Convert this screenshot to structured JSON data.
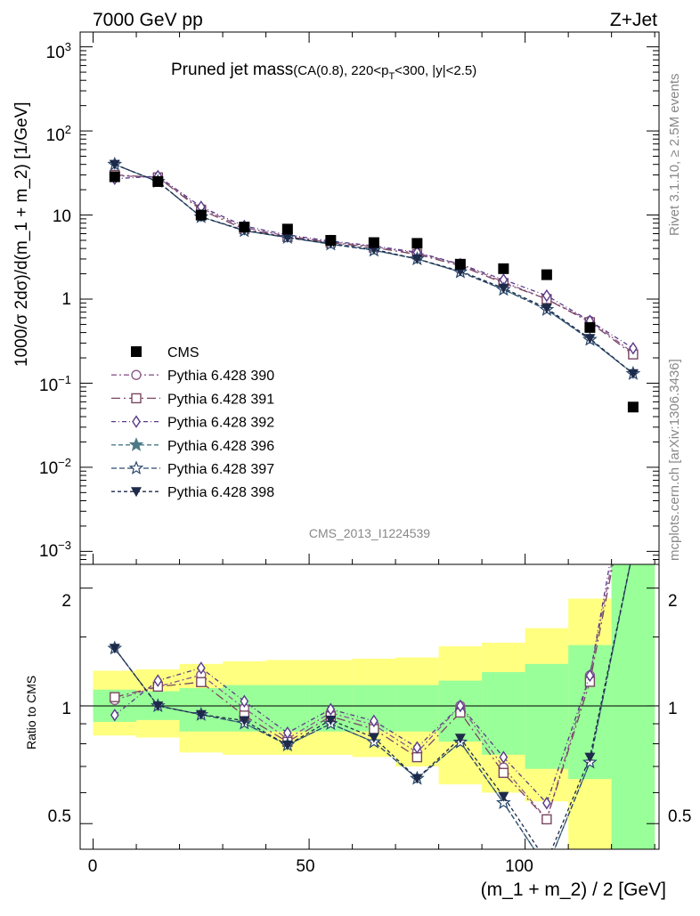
{
  "header": {
    "left": "7000 GeV pp",
    "right": "Z+Jet",
    "title_main": "Pruned jet mass",
    "title_sub": "(CA(0.8), 220<p",
    "title_sub_idx": "T",
    "title_sub_rest": "<300, |y|<2.5)"
  },
  "side_labels": {
    "rivet": "Rivet 3.1.10, ≥ 2.5M events",
    "mcplots": "mcplots.cern.ch [arXiv:1306.3436]"
  },
  "analysis_id": "CMS_2013_I1224539",
  "ylabel_top": "1000/σ 2dσ)/d(m_1 + m_2) [1/GeV]",
  "ylabel_bottom": "Ratio to CMS",
  "xlabel": "(m_1 + m_2) / 2 [GeV]",
  "ticks": {
    "x": [
      "0",
      "50",
      "100"
    ],
    "y_top_plain": [
      "1",
      "10"
    ],
    "y_top_pow": [
      {
        "base": "10",
        "exp": "3"
      },
      {
        "base": "10",
        "exp": "2"
      },
      {
        "base": "10",
        "exp": "−1"
      },
      {
        "base": "10",
        "exp": "−2"
      },
      {
        "base": "10",
        "exp": "−3"
      }
    ],
    "y_ratio": [
      "0.5",
      "1",
      "2"
    ]
  },
  "chart_data": {
    "type": "line",
    "x_range": [
      -3,
      131
    ],
    "y_range_top": [
      0.0007,
      1500
    ],
    "y_log": true,
    "y_range_ratio": [
      0.43,
      2.3
    ],
    "ratio_log": true,
    "bins": [
      [
        0,
        10
      ],
      [
        10,
        20
      ],
      [
        20,
        30
      ],
      [
        30,
        40
      ],
      [
        40,
        50
      ],
      [
        50,
        60
      ],
      [
        60,
        70
      ],
      [
        70,
        80
      ],
      [
        80,
        90
      ],
      [
        90,
        100
      ],
      [
        100,
        110
      ],
      [
        110,
        120
      ],
      [
        120,
        130
      ]
    ],
    "x": [
      5,
      15,
      25,
      35,
      45,
      55,
      65,
      75,
      85,
      95,
      105,
      115,
      125
    ],
    "cms": [
      28.5,
      25,
      10,
      7.2,
      6.8,
      5.0,
      4.7,
      4.6,
      2.6,
      2.3,
      1.95,
      0.46,
      0.052
    ],
    "band_inner": [
      [
        0.91,
        1.1
      ],
      [
        0.92,
        1.09
      ],
      [
        0.86,
        1.11
      ],
      [
        0.86,
        1.13
      ],
      [
        0.86,
        1.13
      ],
      [
        0.86,
        1.13
      ],
      [
        0.86,
        1.13
      ],
      [
        0.86,
        1.13
      ],
      [
        0.81,
        1.16
      ],
      [
        0.75,
        1.22
      ],
      [
        0.69,
        1.28
      ],
      [
        0.65,
        1.43
      ],
      [
        0.33,
        2.3
      ]
    ],
    "band_outer": [
      [
        0.84,
        1.23
      ],
      [
        0.83,
        1.24
      ],
      [
        0.76,
        1.28
      ],
      [
        0.75,
        1.3
      ],
      [
        0.75,
        1.31
      ],
      [
        0.75,
        1.31
      ],
      [
        0.74,
        1.32
      ],
      [
        0.7,
        1.33
      ],
      [
        0.63,
        1.42
      ],
      [
        0.6,
        1.45
      ],
      [
        0.57,
        1.58
      ],
      [
        0.33,
        1.88
      ],
      [
        0.33,
        2.3
      ]
    ],
    "legend_placement": "center-left",
    "series": [
      {
        "name": "CMS",
        "color": "#000000",
        "marker": "square"
      },
      {
        "name": "Pythia 6.428 390",
        "color": "#8b5a8c",
        "marker": "circle",
        "dash": "6,3,2,3",
        "values": [
          29.5,
          28,
          12,
          7.1,
          5.6,
          4.8,
          4.2,
          3.5,
          2.6,
          1.6,
          1.0,
          0.55,
          0.23
        ]
      },
      {
        "name": "Pythia 6.428 391",
        "color": "#7a4660",
        "marker": "square-open",
        "dash": "10,4,2,4",
        "values": [
          30,
          28,
          11.5,
          6.8,
          5.5,
          4.7,
          4.1,
          3.4,
          2.5,
          1.55,
          1.0,
          0.53,
          0.22
        ]
      },
      {
        "name": "Pythia 6.428 392",
        "color": "#5a3a8a",
        "marker": "diamond-open",
        "dash": "5,3,1,3",
        "values": [
          27,
          29,
          12.5,
          7.4,
          5.8,
          4.9,
          4.3,
          3.6,
          2.6,
          1.7,
          1.1,
          0.55,
          0.26
        ]
      },
      {
        "name": "Pythia 6.428 396",
        "color": "#4a7a86",
        "marker": "star-filled",
        "dash": "5,3",
        "values": [
          40,
          25,
          9.5,
          6.5,
          5.4,
          4.5,
          3.8,
          3.0,
          2.1,
          1.3,
          0.75,
          0.33,
          0.13
        ]
      },
      {
        "name": "Pythia 6.428 397",
        "color": "#2c4a6e",
        "marker": "star-open",
        "dash": "6,3",
        "values": [
          40,
          25,
          9.5,
          6.5,
          5.4,
          4.5,
          3.8,
          3.0,
          2.1,
          1.3,
          0.75,
          0.33,
          0.13
        ]
      },
      {
        "name": "Pythia 6.428 398",
        "color": "#1e2a4a",
        "marker": "triangle-down",
        "dash": "4,3",
        "values": [
          40,
          25,
          9.5,
          6.6,
          5.4,
          4.6,
          3.9,
          3.0,
          2.15,
          1.35,
          0.78,
          0.34,
          0.13
        ]
      }
    ]
  }
}
